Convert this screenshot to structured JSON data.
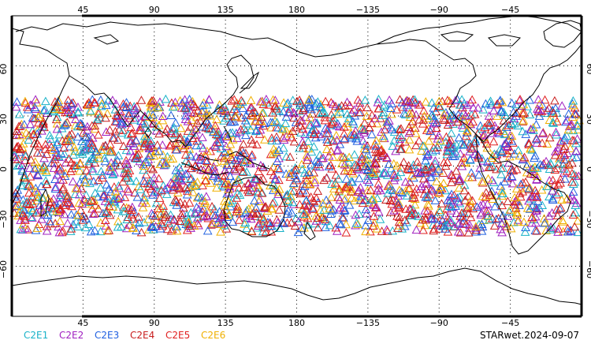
{
  "map": {
    "projection": "equirectangular",
    "central_longitude": 180,
    "lat_range": [
      -90,
      90
    ],
    "grid": "dotted",
    "top_lon_labels": [
      "45",
      "90",
      "135",
      "180",
      "−135",
      "−90",
      "−45"
    ],
    "bottom_lon_labels": [
      "45",
      "90",
      "135",
      "180",
      "−135",
      "−90",
      "−45"
    ],
    "lat_labels": [
      "60",
      "30",
      "0",
      "−30",
      "−60"
    ],
    "observation_lat_band": [
      -40,
      40
    ],
    "marker_symbol": "triangle"
  },
  "legend": [
    {
      "label": "C2E1",
      "color": "#19b2c8"
    },
    {
      "label": "C2E2",
      "color": "#a020c0"
    },
    {
      "label": "C2E3",
      "color": "#2060e0"
    },
    {
      "label": "C2E4",
      "color": "#c81e1e"
    },
    {
      "label": "C2E5",
      "color": "#e02020"
    },
    {
      "label": "C2E6",
      "color": "#f0b000"
    }
  ],
  "stamp": "STARwet.2024-09-07"
}
